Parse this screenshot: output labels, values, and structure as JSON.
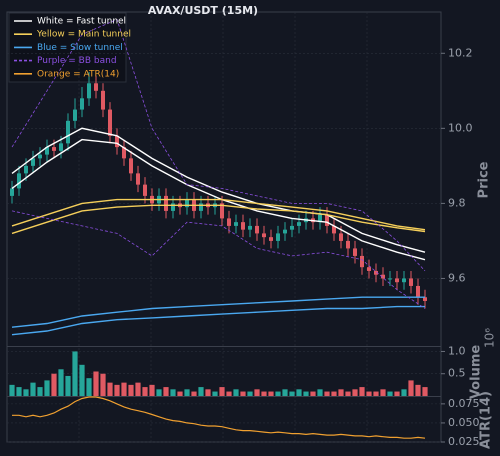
{
  "chart_data": {
    "type": "candlestick",
    "title": "AVAX/USDT (15M)",
    "y_label": "Price",
    "ylim": [
      9.42,
      10.31
    ],
    "yticks": [
      9.6,
      9.8,
      {
        "value": 10.0,
        "label": "10.0"
      },
      10.2
    ],
    "grid": true,
    "up_color": "#26a69a",
    "down_color": "#e05a63",
    "open": [
      9.82,
      9.84,
      9.88,
      9.9,
      9.92,
      9.93,
      9.95,
      9.94,
      9.96,
      10.02,
      10.05,
      10.08,
      10.12,
      10.1,
      10.05,
      9.98,
      9.95,
      9.92,
      9.88,
      9.85,
      9.82,
      9.8,
      9.82,
      9.78,
      9.8,
      9.79,
      9.81,
      9.78,
      9.8,
      9.79,
      9.8,
      9.76,
      9.74,
      9.75,
      9.73,
      9.74,
      9.72,
      9.71,
      9.7,
      9.72,
      9.73,
      9.74,
      9.75,
      9.76,
      9.75,
      9.77,
      9.74,
      9.72,
      9.7,
      9.68,
      9.66,
      9.63,
      9.62,
      9.61,
      9.6,
      9.6,
      9.59,
      9.6,
      9.58,
      9.55
    ],
    "high": [
      9.86,
      9.9,
      9.92,
      9.94,
      9.95,
      9.97,
      9.97,
      9.98,
      10.04,
      10.08,
      10.11,
      10.15,
      10.14,
      10.12,
      10.07,
      10.0,
      9.97,
      9.94,
      9.9,
      9.87,
      9.84,
      9.84,
      9.84,
      9.82,
      9.82,
      9.83,
      9.83,
      9.82,
      9.82,
      9.82,
      9.82,
      9.78,
      9.77,
      9.77,
      9.76,
      9.76,
      9.74,
      9.73,
      9.74,
      9.75,
      9.76,
      9.77,
      9.78,
      9.78,
      9.79,
      9.79,
      9.76,
      9.74,
      9.72,
      9.7,
      9.68,
      9.65,
      9.64,
      9.63,
      9.62,
      9.62,
      9.62,
      9.62,
      9.6,
      9.57
    ],
    "low": [
      9.8,
      9.82,
      9.86,
      9.88,
      9.9,
      9.91,
      9.92,
      9.92,
      9.94,
      10.0,
      10.03,
      10.06,
      10.08,
      10.03,
      9.96,
      9.93,
      9.9,
      9.86,
      9.83,
      9.8,
      9.78,
      9.78,
      9.76,
      9.76,
      9.77,
      9.77,
      9.76,
      9.76,
      9.77,
      9.77,
      9.74,
      9.72,
      9.72,
      9.71,
      9.71,
      9.7,
      9.69,
      9.68,
      9.68,
      9.7,
      9.71,
      9.72,
      9.73,
      9.73,
      9.73,
      9.72,
      9.7,
      9.68,
      9.66,
      9.64,
      9.61,
      9.6,
      9.59,
      9.58,
      9.58,
      9.57,
      9.57,
      9.56,
      9.53,
      9.52
    ],
    "close": [
      9.84,
      9.88,
      9.9,
      9.92,
      9.93,
      9.95,
      9.94,
      9.96,
      10.02,
      10.05,
      10.08,
      10.12,
      10.1,
      10.05,
      9.98,
      9.95,
      9.92,
      9.88,
      9.85,
      9.82,
      9.8,
      9.82,
      9.78,
      9.8,
      9.79,
      9.81,
      9.78,
      9.8,
      9.79,
      9.8,
      9.76,
      9.74,
      9.75,
      9.73,
      9.74,
      9.72,
      9.71,
      9.7,
      9.72,
      9.73,
      9.74,
      9.75,
      9.76,
      9.75,
      9.77,
      9.74,
      9.72,
      9.7,
      9.68,
      9.66,
      9.63,
      9.62,
      9.61,
      9.6,
      9.6,
      9.59,
      9.6,
      9.58,
      9.55,
      9.54
    ],
    "line_x": [
      0,
      5,
      10,
      15,
      20,
      25,
      30,
      35,
      40,
      45,
      50,
      55,
      59
    ],
    "series": [
      {
        "name": "White = Fast tunnel",
        "color": "#ffffff",
        "dashed": false,
        "upper": [
          9.88,
          9.95,
          10.0,
          9.98,
          9.92,
          9.87,
          9.83,
          9.8,
          9.78,
          9.77,
          9.72,
          9.69,
          9.67
        ],
        "lower": [
          9.84,
          9.91,
          9.97,
          9.96,
          9.9,
          9.85,
          9.81,
          9.78,
          9.76,
          9.75,
          9.7,
          9.67,
          9.65
        ]
      },
      {
        "name": "Yellow = Main tunnel",
        "color": "#f5cf5a",
        "dashed": false,
        "upper": [
          9.74,
          9.77,
          9.8,
          9.81,
          9.81,
          9.81,
          9.81,
          9.8,
          9.79,
          9.78,
          9.76,
          9.74,
          9.73
        ],
        "lower": [
          9.72,
          9.75,
          9.78,
          9.79,
          9.795,
          9.795,
          9.795,
          9.785,
          9.78,
          9.77,
          9.75,
          9.735,
          9.725
        ]
      },
      {
        "name": "Blue = Slow tunnel",
        "color": "#4aa8f0",
        "dashed": false,
        "upper": [
          9.47,
          9.48,
          9.5,
          9.51,
          9.52,
          9.525,
          9.53,
          9.535,
          9.54,
          9.545,
          9.55,
          9.55,
          9.55
        ],
        "lower": [
          9.45,
          9.46,
          9.48,
          9.49,
          9.495,
          9.5,
          9.505,
          9.51,
          9.515,
          9.52,
          9.52,
          9.525,
          9.525
        ]
      },
      {
        "name": "Purple = BB band",
        "color": "#8a4fe0",
        "dashed": true,
        "upper": [
          9.95,
          10.1,
          10.25,
          10.29,
          10.0,
          9.85,
          9.84,
          9.82,
          9.8,
          9.8,
          9.78,
          9.7,
          9.62
        ],
        "lower": [
          9.78,
          9.76,
          9.74,
          9.72,
          9.66,
          9.75,
          9.74,
          9.68,
          9.66,
          9.67,
          9.65,
          9.57,
          9.52
        ]
      }
    ],
    "volume": {
      "label": "Volume",
      "multiplier": "10⁶",
      "ylim": [
        0,
        1.1
      ],
      "yticks": [
        0.5,
        {
          "value": 1,
          "label": "1.0"
        }
      ],
      "values": [
        0.25,
        0.2,
        0.15,
        0.3,
        0.2,
        0.35,
        0.5,
        0.6,
        0.45,
        1.0,
        0.7,
        0.4,
        0.55,
        0.5,
        0.3,
        0.25,
        0.3,
        0.25,
        0.3,
        0.2,
        0.25,
        0.15,
        0.2,
        0.15,
        0.1,
        0.15,
        0.1,
        0.2,
        0.15,
        0.1,
        0.2,
        0.1,
        0.15,
        0.1,
        0.1,
        0.15,
        0.1,
        0.1,
        0.1,
        0.15,
        0.1,
        0.15,
        0.1,
        0.1,
        0.15,
        0.1,
        0.1,
        0.15,
        0.1,
        0.15,
        0.2,
        0.1,
        0.1,
        0.15,
        0.1,
        0.1,
        0.15,
        0.35,
        0.25,
        0.2
      ]
    },
    "atr": {
      "name": "Orange = ATR(14)",
      "label": "ATR(14)",
      "color": "#f0a030",
      "ylim": [
        0.025,
        0.084
      ],
      "yticks": [
        0.025,
        {
          "value": 0.05,
          "label": "0.050"
        },
        0.075
      ],
      "values": [
        0.06,
        0.06,
        0.058,
        0.06,
        0.058,
        0.06,
        0.063,
        0.068,
        0.072,
        0.078,
        0.082,
        0.084,
        0.084,
        0.082,
        0.079,
        0.075,
        0.071,
        0.068,
        0.066,
        0.064,
        0.061,
        0.058,
        0.055,
        0.053,
        0.052,
        0.05,
        0.049,
        0.047,
        0.046,
        0.046,
        0.045,
        0.043,
        0.041,
        0.04,
        0.04,
        0.039,
        0.038,
        0.037,
        0.038,
        0.037,
        0.036,
        0.036,
        0.035,
        0.036,
        0.035,
        0.034,
        0.034,
        0.035,
        0.034,
        0.033,
        0.033,
        0.032,
        0.033,
        0.032,
        0.031,
        0.031,
        0.03,
        0.03,
        0.031,
        0.03
      ]
    }
  }
}
